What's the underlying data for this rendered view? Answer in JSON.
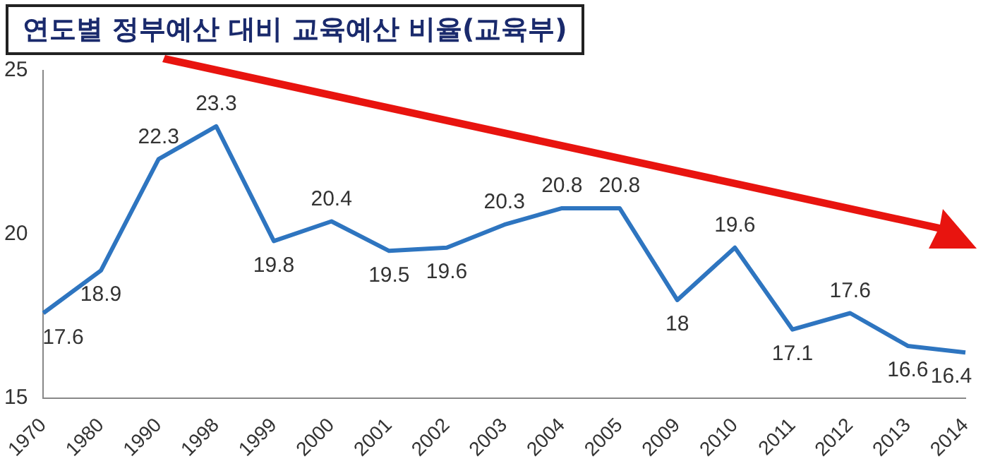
{
  "chart_data": {
    "type": "line",
    "title": "연도별 정부예산 대비 교육예산 비율(교육부)",
    "categories": [
      "1970",
      "1980",
      "1990",
      "1998",
      "1999",
      "2000",
      "2001",
      "2002",
      "2003",
      "2004",
      "2005",
      "2009",
      "2010",
      "2011",
      "2012",
      "2013",
      "2014"
    ],
    "series": [
      {
        "color": "#2e75c0",
        "values": [
          17.6,
          18.9,
          22.3,
          23.3,
          19.8,
          20.4,
          19.5,
          19.6,
          20.3,
          20.8,
          20.8,
          18,
          19.6,
          17.1,
          17.6,
          16.6,
          16.4
        ]
      }
    ],
    "ylim": [
      15,
      25
    ],
    "yticks": [
      15,
      20,
      25
    ],
    "grid": false,
    "legend": false,
    "marker": "none",
    "data_labels": true
  }
}
